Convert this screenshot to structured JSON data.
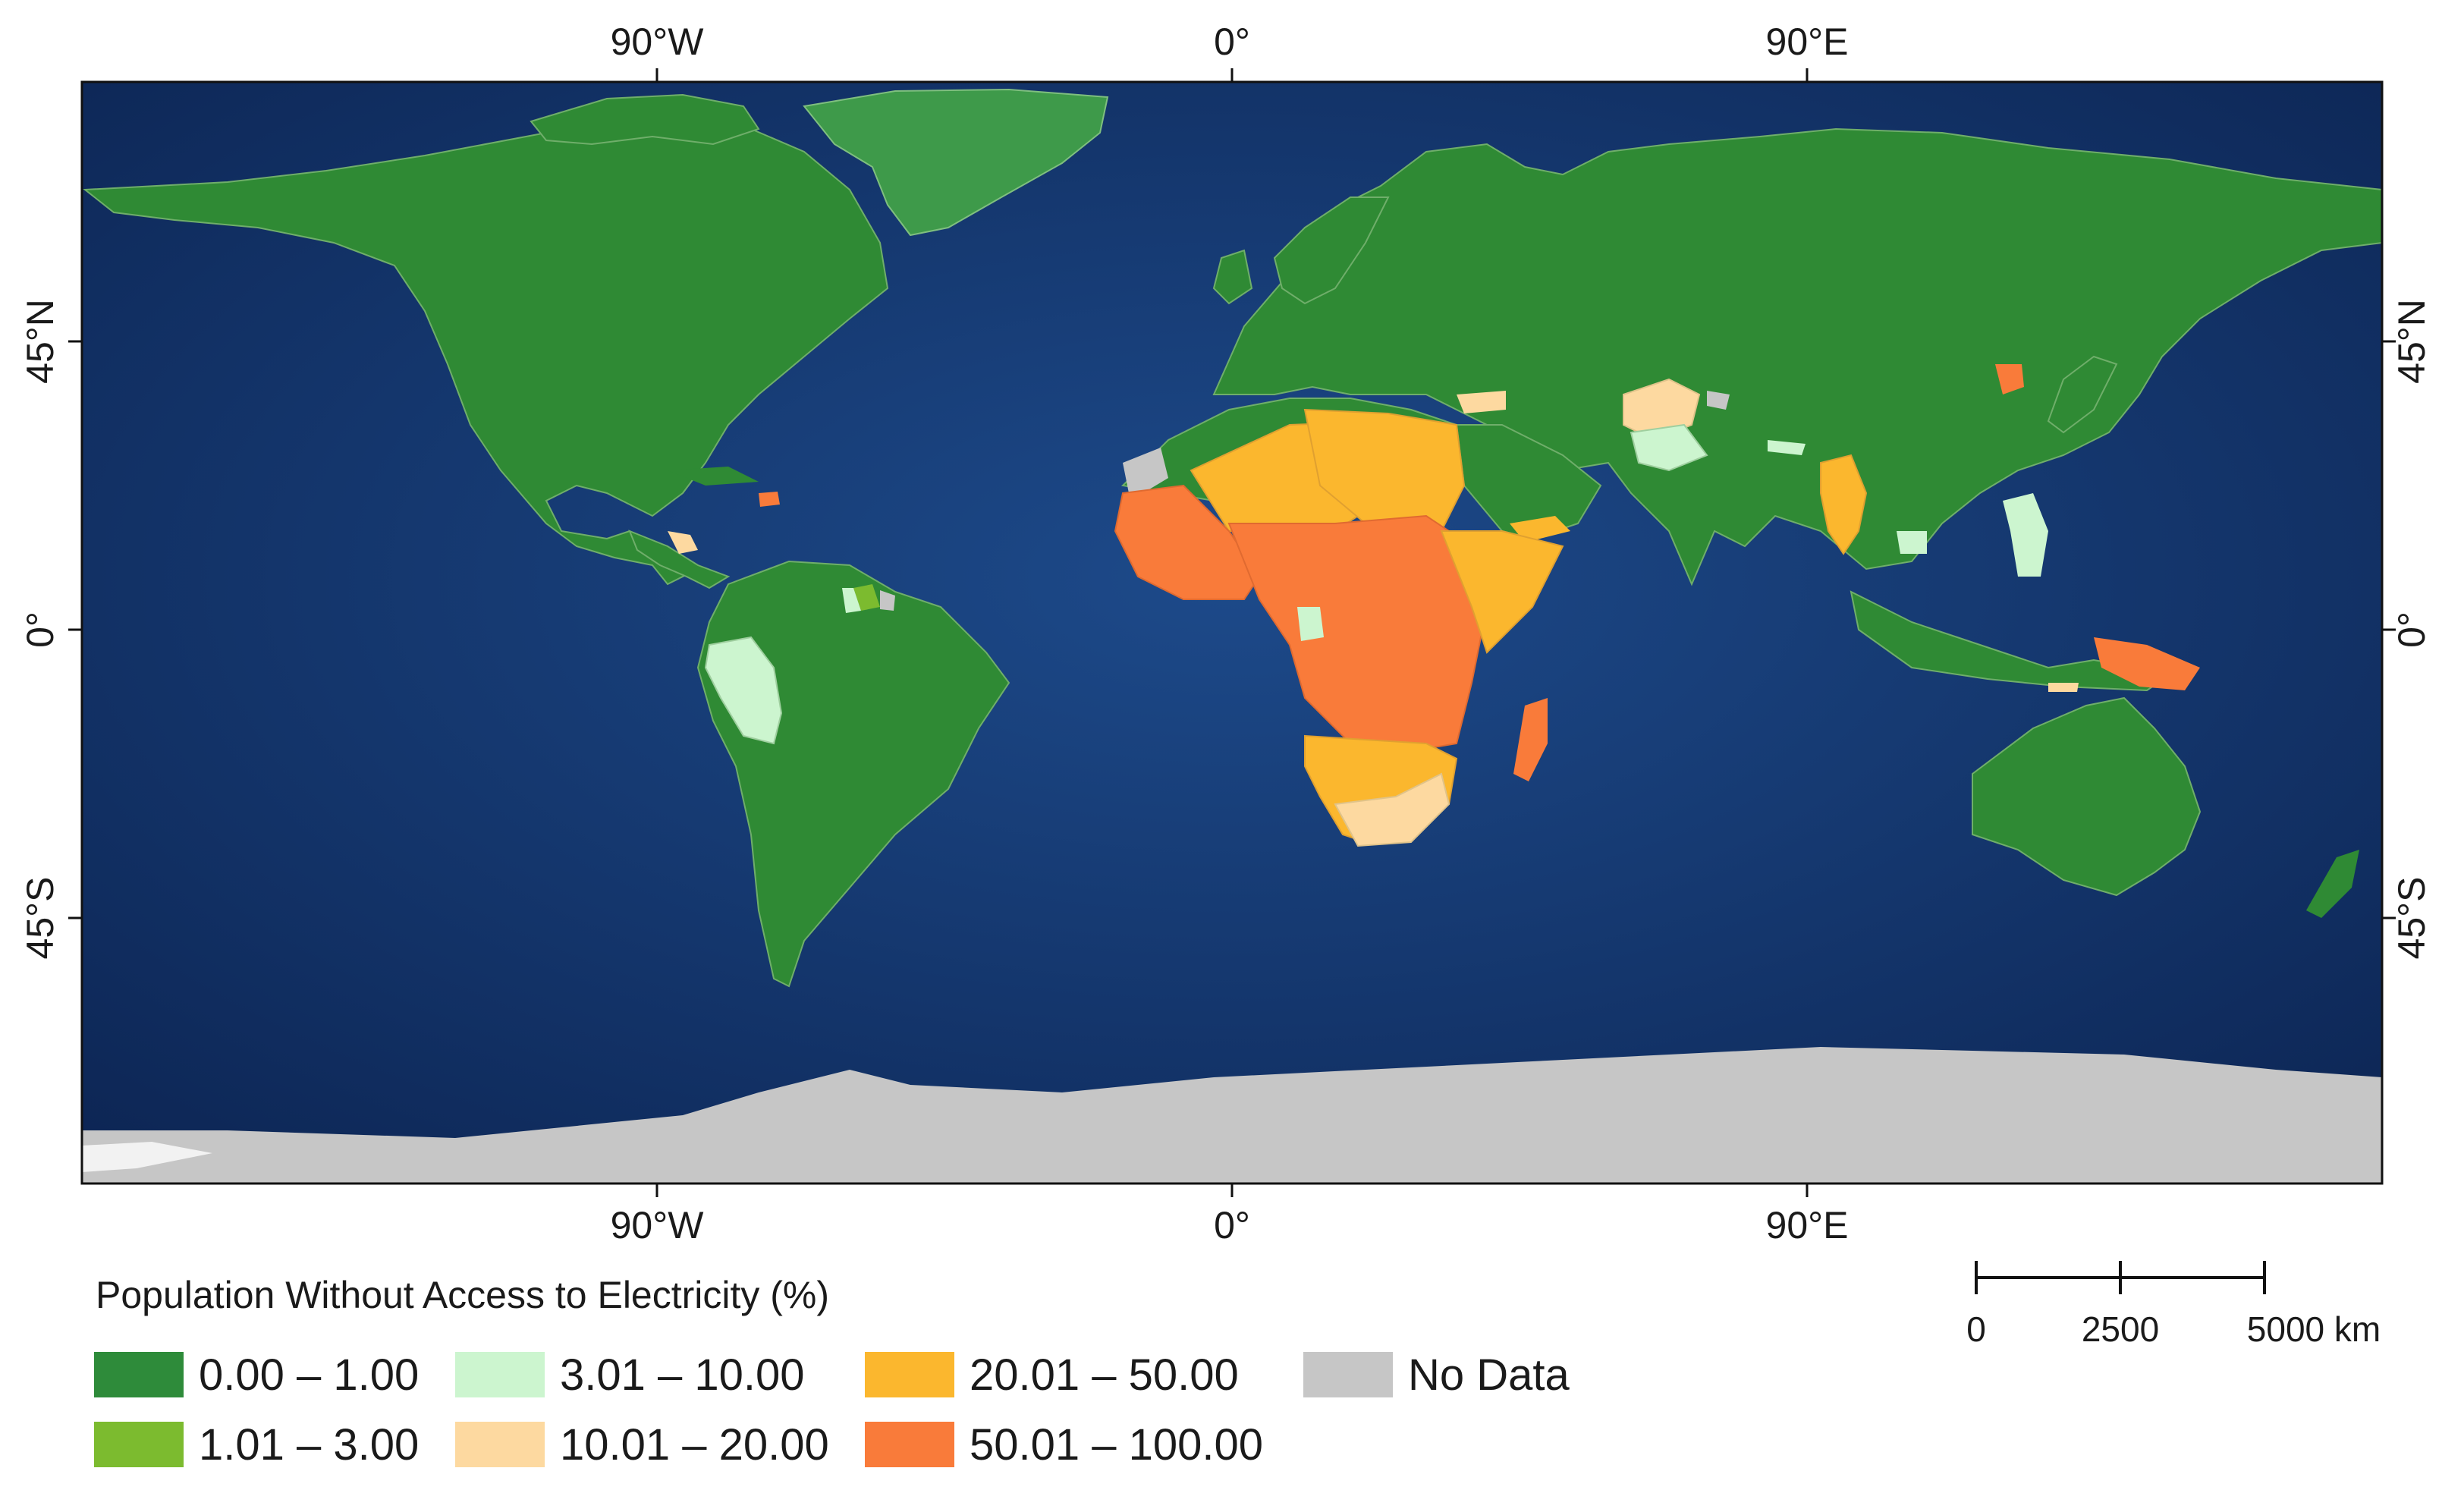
{
  "legend": {
    "title": "Population Without Access to Electricity (%)",
    "classes": [
      {
        "label": "0.00 – 1.00",
        "color": "#2e8b3a"
      },
      {
        "label": "1.01 – 3.00",
        "color": "#7cbb2f"
      },
      {
        "label": "3.01 – 10.00",
        "color": "#ccf5cf"
      },
      {
        "label": "10.01 – 20.00",
        "color": "#fdd9a0"
      },
      {
        "label": "20.01 – 50.00",
        "color": "#fbb72e"
      },
      {
        "label": "50.01 – 100.00",
        "color": "#f97b3a"
      },
      {
        "label": "No Data",
        "color": "#c6c6c6"
      }
    ]
  },
  "axes": {
    "top": [
      "90°W",
      "0°",
      "90°E"
    ],
    "bottom": [
      "90°W",
      "0°",
      "90°E"
    ],
    "left": [
      "45°N",
      "0°",
      "45°S"
    ],
    "right": [
      "45°N",
      "0°",
      "45°S"
    ]
  },
  "scale_bar": {
    "labels": [
      "0",
      "2500",
      "5000 km"
    ]
  },
  "colors": {
    "ocean_deep": "#0d2a5c",
    "ocean_shelf": "#2f6aa6",
    "frame": "#111111"
  }
}
